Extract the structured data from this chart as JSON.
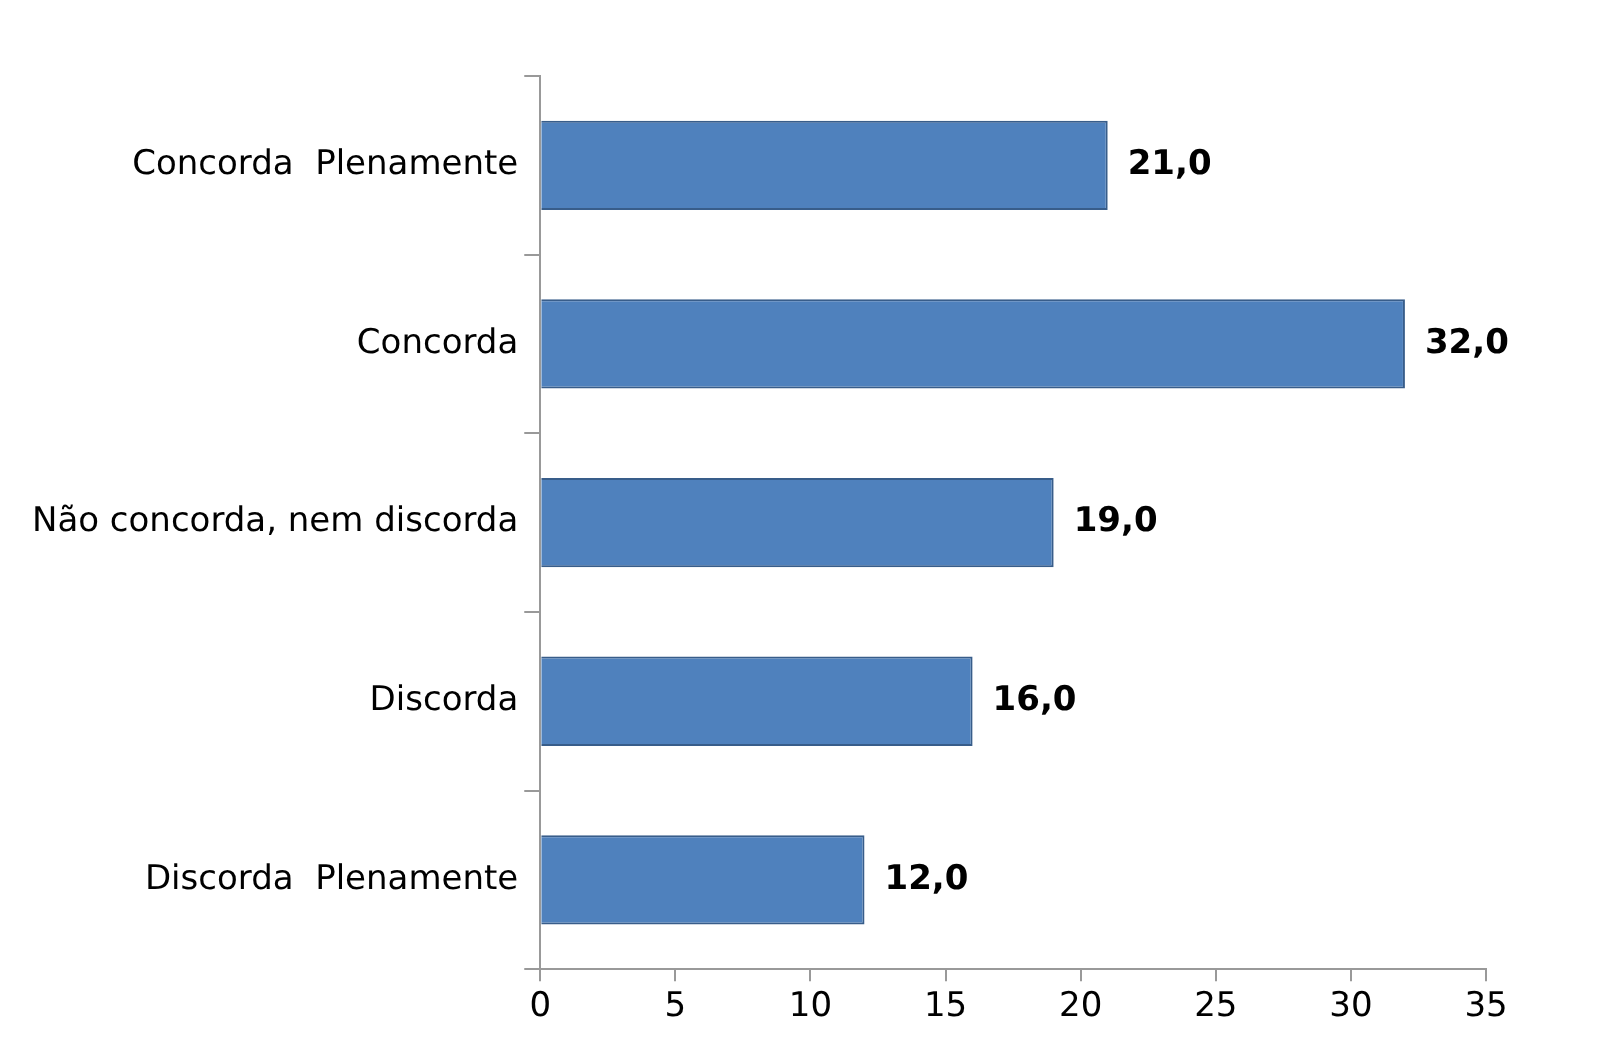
{
  "chart_data": {
    "type": "bar",
    "orientation": "horizontal",
    "categories": [
      "Concorda  Plenamente",
      "Concorda",
      "Não concorda, nem discorda",
      "Discorda",
      "Discorda  Plenamente"
    ],
    "values": [
      21,
      32,
      19,
      16,
      12
    ],
    "value_labels": [
      "21,0",
      "32,0",
      "19,0",
      "16,0",
      "12,0"
    ],
    "color": "#4f81bd",
    "xlim": [
      0,
      35
    ],
    "xticks": [
      0,
      5,
      10,
      15,
      20,
      25,
      30,
      35
    ],
    "grid": false
  }
}
